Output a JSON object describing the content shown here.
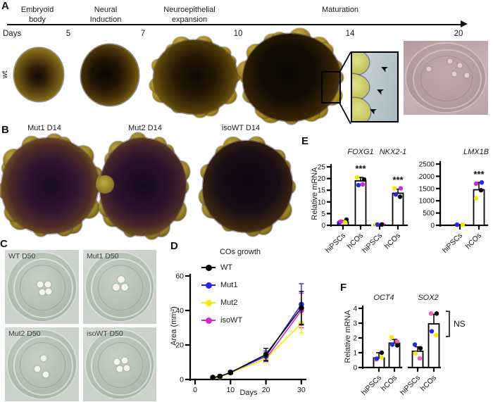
{
  "panel_a": {
    "label": "A",
    "row_label": "wt",
    "stages": [
      {
        "name": "Embryoid body"
      },
      {
        "name": "Neural Induction"
      },
      {
        "name": "Neuroepithelial expansion"
      },
      {
        "name": "Maturation"
      }
    ],
    "days_label": "Days",
    "day_ticks": [
      "5",
      "7",
      "10",
      "14",
      "20"
    ]
  },
  "panel_b": {
    "label": "B",
    "items": [
      {
        "caption": "Mut1 D14"
      },
      {
        "caption": "Mut2 D14"
      },
      {
        "caption": "isoWT D14"
      }
    ]
  },
  "panel_c": {
    "label": "C",
    "items": [
      {
        "caption": "WT D50"
      },
      {
        "caption": "Mut1 D50"
      },
      {
        "caption": "Mut2 D50"
      },
      {
        "caption": "isoWT D50"
      }
    ]
  },
  "panel_d": {
    "label": "D",
    "title": "COs growth",
    "xlabel": "Days",
    "ylabel": "Area (mm²)"
  },
  "panel_e": {
    "label": "E",
    "ylabel": "Relative mRNA"
  },
  "panel_f": {
    "label": "F",
    "ylabel": "Relative mRNA"
  },
  "icons": {
    "zoom_arrow": "➤"
  },
  "chart_data": [
    {
      "id": "cos_growth",
      "type": "line",
      "title": "COs growth",
      "xlabel": "Days",
      "ylabel": "Area (mm²)",
      "x": [
        5,
        7,
        10,
        20,
        30
      ],
      "xlim": [
        0,
        32
      ],
      "ylim": [
        0,
        60
      ],
      "xticks": [
        0,
        10,
        20,
        30
      ],
      "yticks": [
        0,
        20,
        40,
        60
      ],
      "grid": false,
      "legend_position": "upper left",
      "series": [
        {
          "name": "WT",
          "color": "#000000",
          "values": [
            1.2,
            1.8,
            4.0,
            14.5,
            41.5
          ],
          "errors": [
            0.3,
            0.4,
            0.8,
            3.5,
            9.5
          ]
        },
        {
          "name": "Mut1",
          "color": "#2727e6",
          "values": [
            1.1,
            1.7,
            4.2,
            13.5,
            43.5
          ],
          "errors": [
            0.3,
            0.4,
            0.8,
            3.0,
            12.0
          ]
        },
        {
          "name": "Mut2",
          "color": "#f7ea00",
          "values": [
            1.0,
            1.5,
            3.8,
            12.0,
            32.5
          ],
          "errors": [
            0.3,
            0.4,
            0.7,
            2.0,
            5.5
          ]
        },
        {
          "name": "isoWT",
          "color": "#d428cc",
          "values": [
            1.0,
            1.6,
            4.0,
            12.0,
            40.0
          ],
          "errors": [
            0.3,
            0.4,
            0.7,
            2.0,
            10.0
          ]
        }
      ]
    },
    {
      "id": "foxg1",
      "type": "bar",
      "title": "FOXG1",
      "ylabel": "Relative mRNA",
      "categories": [
        "hiPSCs",
        "hCOs"
      ],
      "values": [
        1.4,
        19.0
      ],
      "errors": [
        0.6,
        1.5
      ],
      "ylim": [
        0,
        25
      ],
      "yticks": [
        0,
        5,
        10,
        15,
        20,
        25
      ],
      "significance": "***",
      "points": [
        [
          {
            "color": "#2727e6",
            "v": 1.2
          },
          {
            "color": "#000000",
            "v": 2.4
          },
          {
            "color": "#d428cc",
            "v": 1.6
          },
          {
            "color": "#f7ea00",
            "v": 1.3
          }
        ],
        [
          {
            "color": "#f7ea00",
            "v": 20.5
          },
          {
            "color": "#000000",
            "v": 19.6
          },
          {
            "color": "#2727e6",
            "v": 17.2
          },
          {
            "color": "#d428cc",
            "v": 17.5
          }
        ]
      ]
    },
    {
      "id": "nkx2_1",
      "type": "bar",
      "title": "NKX2-1",
      "categories": [
        "hiPSCs",
        "hCOs"
      ],
      "values": [
        0.3,
        13.7
      ],
      "errors": [
        0.15,
        1.8
      ],
      "ylim": [
        0,
        25
      ],
      "significance": "***",
      "points": [
        [
          {
            "color": "#f7ea00",
            "v": 0.3
          },
          {
            "color": "#d428cc",
            "v": 0.4
          },
          {
            "color": "#2727e6",
            "v": 0.3
          },
          {
            "color": "#000000",
            "v": 0.35
          }
        ],
        [
          {
            "color": "#f7ea00",
            "v": 15.8
          },
          {
            "color": "#d428cc",
            "v": 15.8
          },
          {
            "color": "#2727e6",
            "v": 13.2
          },
          {
            "color": "#000000",
            "v": 12.2
          }
        ]
      ]
    },
    {
      "id": "lmx1b",
      "type": "bar",
      "title": "LMX1B",
      "categories": [
        "hiPSCs",
        "hCOs"
      ],
      "values": [
        25,
        1450
      ],
      "errors": [
        10,
        300
      ],
      "ylim": [
        0,
        2500
      ],
      "yticks": [
        0,
        500,
        1000,
        1500,
        2000,
        2500
      ],
      "significance": "***",
      "points": [
        [
          {
            "color": "#d428cc",
            "v": 25
          },
          {
            "color": "#f7ea00",
            "v": 25
          },
          {
            "color": "#2727e6",
            "v": 25
          }
        ],
        [
          {
            "color": "#d428cc",
            "v": 1700
          },
          {
            "color": "#2727e6",
            "v": 1750
          },
          {
            "color": "#f7ea00",
            "v": 1100
          },
          {
            "color": "#000000",
            "v": 1430
          }
        ]
      ]
    },
    {
      "id": "oct4",
      "type": "bar",
      "title": "OCT4",
      "ylabel": "Relative mRNA",
      "categories": [
        "hiPSCs",
        "hCOs"
      ],
      "values": [
        0.65,
        1.65
      ],
      "errors": [
        0.35,
        0.25
      ],
      "ylim": [
        0,
        4
      ],
      "yticks": [
        0,
        1,
        2,
        3,
        4
      ],
      "points": [
        [
          {
            "color": "#f263b8",
            "v": 0.55
          },
          {
            "color": "#f7ea00",
            "v": 0.68
          },
          {
            "color": "#2727e6",
            "v": 0.6
          },
          {
            "color": "#000000",
            "v": 1.0
          }
        ],
        [
          {
            "color": "#f7ea00",
            "v": 2.05
          },
          {
            "color": "#f263b8",
            "v": 1.75
          },
          {
            "color": "#2727e6",
            "v": 1.55
          },
          {
            "color": "#000000",
            "v": 1.5
          }
        ]
      ]
    },
    {
      "id": "sox2",
      "type": "bar",
      "title": "SOX2",
      "categories": [
        "hiPSCs",
        "hCOs"
      ],
      "values": [
        1.1,
        2.95
      ],
      "errors": [
        0.3,
        0.65
      ],
      "ylim": [
        0,
        4
      ],
      "annotation": {
        "text": "NS",
        "from": 2.1,
        "to": 3.8
      },
      "points": [
        [
          {
            "color": "#2727e6",
            "v": 1.55
          },
          {
            "color": "#000000",
            "v": 1.3
          },
          {
            "color": "#f7ea00",
            "v": 0.95
          },
          {
            "color": "#f263b8",
            "v": 0.62
          }
        ],
        [
          {
            "color": "#f263b8",
            "v": 3.65
          },
          {
            "color": "#000000",
            "v": 3.65
          },
          {
            "color": "#2727e6",
            "v": 2.45
          },
          {
            "color": "#f7ea00",
            "v": 2.2
          }
        ]
      ]
    }
  ]
}
